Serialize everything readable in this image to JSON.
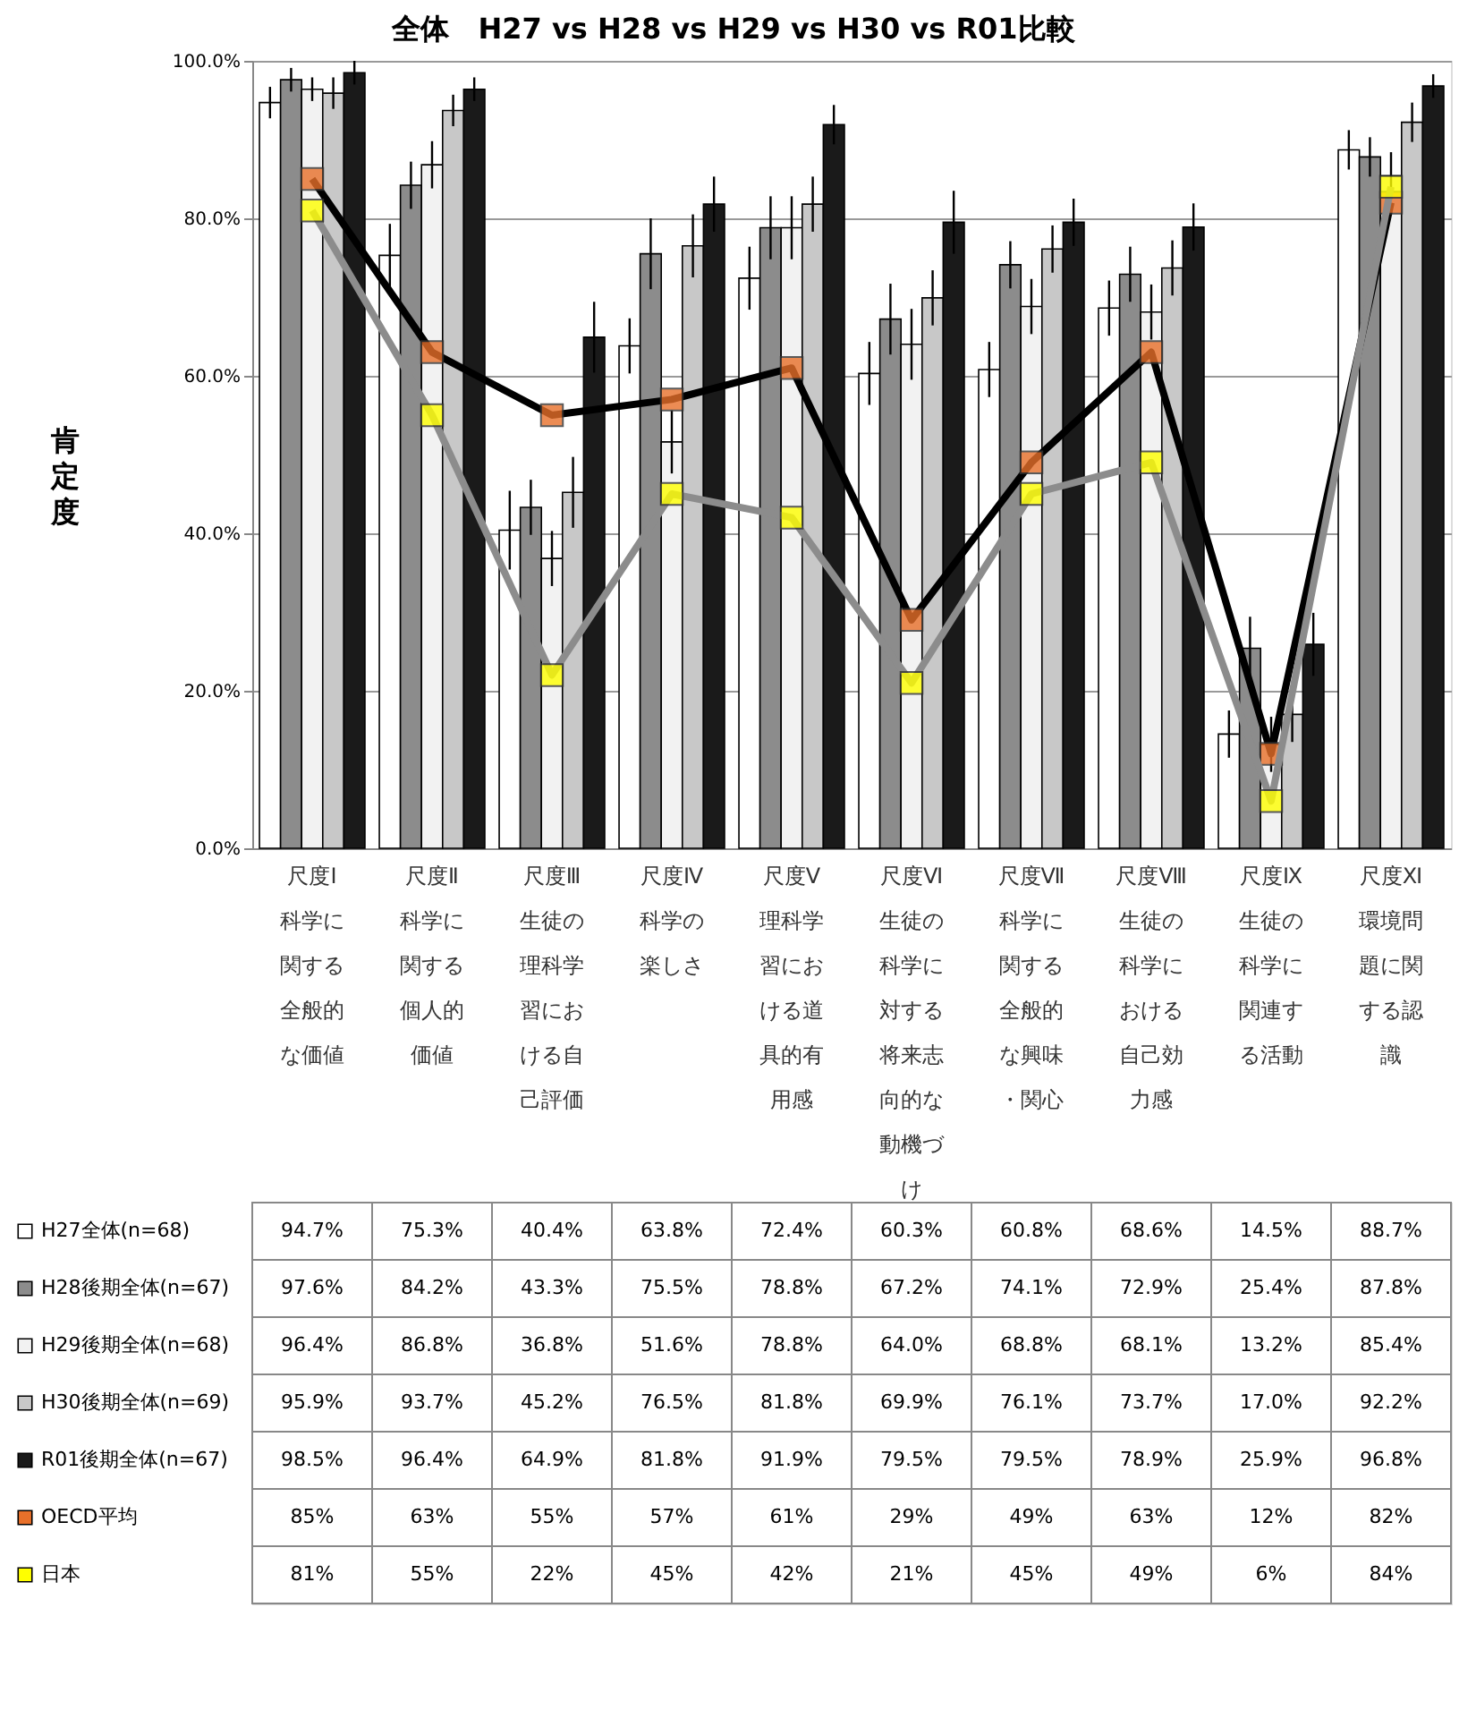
{
  "chart_data": {
    "type": "bar",
    "title": "全体　H27 vs H28 vs H29 vs H30 vs R01比較",
    "ylabel": "肯定度",
    "categories": [
      "尺度Ⅰ科学に関する全般的な価値",
      "尺度Ⅱ科学に関する個人的価値",
      "尺度Ⅲ生徒の理科学習における自己評価",
      "尺度Ⅳ科学の楽しさ",
      "尺度Ⅴ理科学習における道具的有用感",
      "尺度Ⅵ生徒の科学に対する将来志向的な動機づけ",
      "尺度Ⅶ科学に関する全般的な興味・関心",
      "尺度Ⅷ生徒の科学における自己効力感",
      "尺度Ⅸ生徒の科学に関連する活動",
      "尺度Ⅺ環境問題に関する認識"
    ],
    "series": [
      {
        "name": "H27全体(n=68)",
        "color": "#ffffff",
        "values": [
          94.7,
          75.3,
          40.4,
          63.8,
          72.4,
          60.3,
          60.8,
          68.6,
          14.5,
          88.7
        ],
        "value_labels": [
          "94.7%",
          "75.3%",
          "40.4%",
          "63.8%",
          "72.4%",
          "60.3%",
          "60.8%",
          "68.6%",
          "14.5%",
          "88.7%"
        ],
        "errors": [
          2,
          4,
          5,
          3.5,
          4,
          4,
          3.5,
          3.5,
          3,
          2.5
        ]
      },
      {
        "name": "H28後期全体(n=67)",
        "color": "#8c8c8c",
        "values": [
          97.6,
          84.2,
          43.3,
          75.5,
          78.8,
          67.2,
          74.1,
          72.9,
          25.4,
          87.8
        ],
        "value_labels": [
          "97.6%",
          "84.2%",
          "43.3%",
          "75.5%",
          "78.8%",
          "67.2%",
          "74.1%",
          "72.9%",
          "25.4%",
          "87.8%"
        ],
        "errors": [
          1.5,
          3,
          3.5,
          4.5,
          4,
          4.5,
          3,
          3.5,
          4,
          2.5
        ]
      },
      {
        "name": "H29後期全体(n=68)",
        "color": "#f2f2f2",
        "values": [
          96.4,
          86.8,
          36.8,
          51.6,
          78.8,
          64.0,
          68.8,
          68.1,
          13.2,
          85.4
        ],
        "value_labels": [
          "96.4%",
          "86.8%",
          "36.8%",
          "51.6%",
          "78.8%",
          "64.0%",
          "68.8%",
          "68.1%",
          "13.2%",
          "85.4%"
        ],
        "errors": [
          1.5,
          3,
          3.5,
          4,
          4,
          4.5,
          3.5,
          3.5,
          3.5,
          3
        ]
      },
      {
        "name": "H30後期全体(n=69)",
        "color": "#c8c8c8",
        "values": [
          95.9,
          93.7,
          45.2,
          76.5,
          81.8,
          69.9,
          76.1,
          73.7,
          17.0,
          92.2
        ],
        "value_labels": [
          "95.9%",
          "93.7%",
          "45.2%",
          "76.5%",
          "81.8%",
          "69.9%",
          "76.1%",
          "73.7%",
          "17.0%",
          "92.2%"
        ],
        "errors": [
          2,
          2,
          4.5,
          4,
          3.5,
          3.5,
          3,
          3.5,
          3.5,
          2.5
        ]
      },
      {
        "name": "R01後期全体(n=67)",
        "color": "#1a1a1a",
        "values": [
          98.5,
          96.4,
          64.9,
          81.8,
          91.9,
          79.5,
          79.5,
          78.9,
          25.9,
          96.8
        ],
        "value_labels": [
          "98.5%",
          "96.4%",
          "64.9%",
          "81.8%",
          "91.9%",
          "79.5%",
          "79.5%",
          "78.9%",
          "25.9%",
          "96.8%"
        ],
        "errors": [
          1.5,
          1.5,
          4.5,
          3.5,
          2.5,
          4,
          3,
          3,
          4,
          1.5
        ]
      },
      {
        "name": "OECD平均",
        "type": "line",
        "color": "#000000",
        "colors": [
          "#e8702a",
          "#e8702a",
          "#e8702a",
          "#e8702a",
          "#e8702a",
          "#e8702a",
          "#e8702a",
          "#e8702a",
          "#e8702a",
          "#e8702a"
        ],
        "values": [
          85,
          63,
          55,
          57,
          61,
          29,
          49,
          63,
          12,
          82
        ],
        "value_labels": [
          "85%",
          "63%",
          "55%",
          "57%",
          "61%",
          "29%",
          "49%",
          "63%",
          "12%",
          "82%"
        ]
      },
      {
        "name": "日本",
        "type": "line",
        "color": "#8c8c8c",
        "colors": [
          "#ffff00",
          "#ffff00",
          "#ffff00",
          "#ffff00",
          "#ffff00",
          "#ffff00",
          "#ffff00",
          "#ffff00",
          "#ffff00",
          "#ffff00"
        ],
        "values": [
          81,
          55,
          22,
          45,
          42,
          21,
          45,
          49,
          6,
          84
        ],
        "value_labels": [
          "81%",
          "55%",
          "22%",
          "45%",
          "42%",
          "21%",
          "45%",
          "49%",
          "6%",
          "84%"
        ]
      }
    ],
    "ylim": [
      0,
      100
    ],
    "yticks": [
      {
        "value": 0,
        "label": "0.0%"
      },
      {
        "value": 20,
        "label": "20.0%"
      },
      {
        "value": 40,
        "label": "40.0%"
      },
      {
        "value": 60,
        "label": "60.0%"
      },
      {
        "value": 80,
        "label": "80.0%"
      },
      {
        "value": 100,
        "label": "100.0%"
      }
    ],
    "grid": "y",
    "legend": "bottom",
    "marker": "square",
    "line_style": "solid"
  }
}
